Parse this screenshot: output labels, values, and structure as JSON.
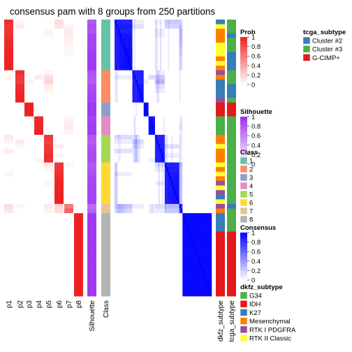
{
  "chart_data": {
    "type": "heatmap",
    "title": "consensus pam with 8 groups from 250 partitions",
    "n_samples": 60,
    "columns": [
      "p1",
      "p2",
      "p3",
      "p4",
      "p5",
      "p6",
      "p7",
      "p8",
      "Silhouette",
      "Class",
      "dkfz_subtype",
      "tcga_subtype"
    ],
    "class_sizes": [
      11,
      7,
      3,
      4,
      6,
      9,
      2,
      18
    ],
    "legends": {
      "prob": {
        "title": "Prob",
        "ticks": [
          "1",
          "0.8",
          "0.6",
          "0.4",
          "0.2",
          "0"
        ],
        "low_color": "#ffffff",
        "high_color": "#ee2222"
      },
      "silhouette": {
        "title": "Silhouette",
        "ticks": [
          "1",
          "0.8",
          "0.6",
          "0.4",
          "0.2",
          "0"
        ],
        "low_color": "#ffffff",
        "high_color": "#9b2ff0"
      },
      "class": {
        "title": "Class",
        "items": [
          {
            "label": "1",
            "color": "#66c2a5"
          },
          {
            "label": "2",
            "color": "#fc8d62"
          },
          {
            "label": "3",
            "color": "#8da0cb"
          },
          {
            "label": "4",
            "color": "#e78ac3"
          },
          {
            "label": "5",
            "color": "#a6d854"
          },
          {
            "label": "6",
            "color": "#ffd92f"
          },
          {
            "label": "7",
            "color": "#e5c494"
          },
          {
            "label": "8",
            "color": "#b3b3b3"
          }
        ]
      },
      "consensus": {
        "title": "Consensus",
        "ticks": [
          "1",
          "0.8",
          "0.6",
          "0.4",
          "0.2",
          "0"
        ],
        "low_color": "#ffffff",
        "high_color": "#0000ff"
      },
      "dkfz_subtype": {
        "title": "dkfz_subtype",
        "items": [
          {
            "label": "G34",
            "color": "#4daf4a"
          },
          {
            "label": "IDH",
            "color": "#e41a1c"
          },
          {
            "label": "K27",
            "color": "#377eb8"
          },
          {
            "label": "Mesenchymal",
            "color": "#ff7f00"
          },
          {
            "label": "RTK I PDGFRA",
            "color": "#984ea3"
          },
          {
            "label": "RTK II Classic",
            "color": "#ffff33"
          }
        ]
      },
      "tcga_subtype": {
        "title": "tcga_subtype",
        "items": [
          {
            "label": "Cluster #2",
            "color": "#377eb8"
          },
          {
            "label": "Cluster #3",
            "color": "#4daf4a"
          },
          {
            "label": "G-CIMP+",
            "color": "#e41a1c"
          }
        ]
      }
    },
    "samples": [
      {
        "cls": 1,
        "sil": 0.8,
        "p": [
          0.95,
          0.05,
          0,
          0,
          0.02,
          0.15,
          0,
          0
        ],
        "dkfz": "K27",
        "tcga": "Cluster #3"
      },
      {
        "cls": 1,
        "sil": 0.85,
        "p": [
          0.9,
          0.08,
          0,
          0,
          0,
          0.12,
          0.05,
          0
        ],
        "dkfz": "RTK II Classic",
        "tcga": "Cluster #3"
      },
      {
        "cls": 1,
        "sil": 0.82,
        "p": [
          0.92,
          0,
          0,
          0,
          0.05,
          0,
          0.1,
          0
        ],
        "dkfz": "Mesenchymal",
        "tcga": "Cluster #3"
      },
      {
        "cls": 1,
        "sil": 0.88,
        "p": [
          0.93,
          0,
          0,
          0,
          0.04,
          0,
          0.08,
          0
        ],
        "dkfz": "Mesenchymal",
        "tcga": "Cluster #2"
      },
      {
        "cls": 1,
        "sil": 0.9,
        "p": [
          0.96,
          0,
          0,
          0,
          0,
          0,
          0.07,
          0
        ],
        "dkfz": "Mesenchymal",
        "tcga": "Cluster #3"
      },
      {
        "cls": 1,
        "sil": 0.9,
        "p": [
          0.97,
          0,
          0,
          0,
          0,
          0,
          0.06,
          0
        ],
        "dkfz": "RTK II Classic",
        "tcga": "Cluster #3"
      },
      {
        "cls": 1,
        "sil": 0.92,
        "p": [
          0.98,
          0,
          0,
          0,
          0,
          0,
          0.04,
          0
        ],
        "dkfz": "RTK II Classic",
        "tcga": "Cluster #3"
      },
      {
        "cls": 1,
        "sil": 0.93,
        "p": [
          0.99,
          0,
          0,
          0,
          0,
          0,
          0.03,
          0
        ],
        "dkfz": "RTK II Classic",
        "tcga": "Cluster #2"
      },
      {
        "cls": 1,
        "sil": 0.94,
        "p": [
          1,
          0,
          0,
          0,
          0,
          0,
          0,
          0
        ],
        "dkfz": "Mesenchymal",
        "tcga": "Cluster #2"
      },
      {
        "cls": 1,
        "sil": 0.95,
        "p": [
          1,
          0,
          0,
          0,
          0,
          0,
          0,
          0
        ],
        "dkfz": "RTK II Classic",
        "tcga": "Cluster #2"
      },
      {
        "cls": 1,
        "sil": 0.95,
        "p": [
          1,
          0,
          0,
          0,
          0,
          0,
          0,
          0
        ],
        "dkfz": "Mesenchymal",
        "tcga": "Cluster #2"
      },
      {
        "cls": 2,
        "sil": 0.82,
        "p": [
          0,
          0.95,
          0,
          0,
          0.05,
          0,
          0,
          0
        ],
        "dkfz": "RTK I PDGFRA",
        "tcga": "Cluster #3"
      },
      {
        "cls": 2,
        "sil": 0.8,
        "p": [
          0.05,
          0.9,
          0,
          0.1,
          0.15,
          0,
          0,
          0
        ],
        "dkfz": "Mesenchymal",
        "tcga": "Cluster #3"
      },
      {
        "cls": 2,
        "sil": 0.78,
        "p": [
          0,
          0.88,
          0.05,
          0,
          0.2,
          0,
          0,
          0
        ],
        "dkfz": "K27",
        "tcga": "Cluster #3"
      },
      {
        "cls": 2,
        "sil": 0.86,
        "p": [
          0,
          0.95,
          0,
          0,
          0.08,
          0,
          0,
          0
        ],
        "dkfz": "K27",
        "tcga": "Cluster #2"
      },
      {
        "cls": 2,
        "sil": 0.88,
        "p": [
          0,
          0.97,
          0,
          0,
          0.05,
          0,
          0,
          0
        ],
        "dkfz": "K27",
        "tcga": "Cluster #2"
      },
      {
        "cls": 2,
        "sil": 0.9,
        "p": [
          0,
          1,
          0,
          0,
          0,
          0,
          0,
          0
        ],
        "dkfz": "K27",
        "tcga": "Cluster #2"
      },
      {
        "cls": 2,
        "sil": 0.9,
        "p": [
          0,
          1,
          0,
          0,
          0,
          0,
          0,
          0
        ],
        "dkfz": "RTK I PDGFRA",
        "tcga": "Cluster #3"
      },
      {
        "cls": 3,
        "sil": 0.95,
        "p": [
          0,
          0,
          1,
          0,
          0,
          0,
          0,
          0
        ],
        "dkfz": "IDH",
        "tcga": "G-CIMP+"
      },
      {
        "cls": 3,
        "sil": 0.95,
        "p": [
          0,
          0,
          1,
          0,
          0,
          0,
          0,
          0
        ],
        "dkfz": "IDH",
        "tcga": "G-CIMP+"
      },
      {
        "cls": 3,
        "sil": 0.95,
        "p": [
          0,
          0,
          1,
          0,
          0,
          0,
          0,
          0
        ],
        "dkfz": "IDH",
        "tcga": "G-CIMP+"
      },
      {
        "cls": 4,
        "sil": 0.9,
        "p": [
          0,
          0,
          0,
          0.95,
          0,
          0,
          0.05,
          0
        ],
        "dkfz": "G34",
        "tcga": "Cluster #3"
      },
      {
        "cls": 4,
        "sil": 0.92,
        "p": [
          0,
          0,
          0,
          0.97,
          0,
          0,
          0.08,
          0
        ],
        "dkfz": "G34",
        "tcga": "Cluster #3"
      },
      {
        "cls": 4,
        "sil": 0.93,
        "p": [
          0,
          0,
          0,
          0.98,
          0,
          0,
          0.1,
          0
        ],
        "dkfz": "G34",
        "tcga": "Cluster #3"
      },
      {
        "cls": 4,
        "sil": 0.93,
        "p": [
          0,
          0,
          0,
          1,
          0,
          0,
          0.05,
          0
        ],
        "dkfz": "G34",
        "tcga": "Cluster #3"
      },
      {
        "cls": 5,
        "sil": 0.8,
        "p": [
          0.1,
          0,
          0,
          0,
          0.9,
          0,
          0,
          0
        ],
        "dkfz": "Mesenchymal",
        "tcga": "Cluster #3"
      },
      {
        "cls": 5,
        "sil": 0.78,
        "p": [
          0.05,
          0.1,
          0,
          0,
          0.85,
          0,
          0,
          0
        ],
        "dkfz": "Mesenchymal",
        "tcga": "Cluster #3"
      },
      {
        "cls": 5,
        "sil": 0.82,
        "p": [
          0,
          0.05,
          0,
          0,
          0.9,
          0.08,
          0,
          0
        ],
        "dkfz": "RTK II Classic",
        "tcga": "Cluster #3"
      },
      {
        "cls": 5,
        "sil": 0.84,
        "p": [
          0.08,
          0,
          0,
          0,
          0.92,
          0,
          0,
          0
        ],
        "dkfz": "Mesenchymal",
        "tcga": "Cluster #3"
      },
      {
        "cls": 5,
        "sil": 0.86,
        "p": [
          0,
          0,
          0,
          0,
          0.95,
          0.05,
          0,
          0
        ],
        "dkfz": "Mesenchymal",
        "tcga": "Cluster #3"
      },
      {
        "cls": 5,
        "sil": 0.86,
        "p": [
          0,
          0,
          0,
          0.05,
          0.95,
          0,
          0,
          0
        ],
        "dkfz": "Mesenchymal",
        "tcga": "Cluster #3"
      },
      {
        "cls": 6,
        "sil": 0.8,
        "p": [
          0,
          0,
          0,
          0,
          0.1,
          0.9,
          0.05,
          0
        ],
        "dkfz": "RTK II Classic",
        "tcga": "Cluster #3"
      },
      {
        "cls": 6,
        "sil": 0.82,
        "p": [
          0,
          0,
          0,
          0,
          0.05,
          0.92,
          0,
          0
        ],
        "dkfz": "Mesenchymal",
        "tcga": "Cluster #3"
      },
      {
        "cls": 6,
        "sil": 0.85,
        "p": [
          0.05,
          0,
          0,
          0,
          0,
          0.95,
          0,
          0
        ],
        "dkfz": "RTK II Classic",
        "tcga": "Cluster #3"
      },
      {
        "cls": 6,
        "sil": 0.87,
        "p": [
          0,
          0,
          0,
          0,
          0,
          0.97,
          0,
          0
        ],
        "dkfz": "Mesenchymal",
        "tcga": "Cluster #3"
      },
      {
        "cls": 6,
        "sil": 0.88,
        "p": [
          0,
          0,
          0,
          0,
          0.05,
          0.98,
          0,
          0
        ],
        "dkfz": "RTK I PDGFRA",
        "tcga": "Cluster #3"
      },
      {
        "cls": 6,
        "sil": 0.9,
        "p": [
          0,
          0,
          0,
          0,
          0,
          1,
          0,
          0
        ],
        "dkfz": "RTK II Classic",
        "tcga": "Cluster #3"
      },
      {
        "cls": 6,
        "sil": 0.9,
        "p": [
          0,
          0,
          0,
          0,
          0,
          1,
          0,
          0
        ],
        "dkfz": "RTK I PDGFRA",
        "tcga": "Cluster #3"
      },
      {
        "cls": 6,
        "sil": 0.9,
        "p": [
          0,
          0,
          0,
          0,
          0,
          1,
          0,
          0
        ],
        "dkfz": "K27",
        "tcga": "Cluster #3"
      },
      {
        "cls": 6,
        "sil": 0.9,
        "p": [
          0,
          0,
          0,
          0,
          0,
          1,
          0,
          0
        ],
        "dkfz": "RTK II Classic",
        "tcga": "Cluster #3"
      },
      {
        "cls": 7,
        "sil": 0.7,
        "p": [
          0.15,
          0.05,
          0,
          0,
          0.1,
          0.2,
          0.6,
          0
        ],
        "dkfz": "RTK I PDGFRA",
        "tcga": "Cluster #2"
      },
      {
        "cls": 7,
        "sil": 0.75,
        "p": [
          0.1,
          0,
          0,
          0,
          0.05,
          0.15,
          0.7,
          0
        ],
        "dkfz": "Mesenchymal",
        "tcga": "Cluster #3"
      },
      {
        "cls": 8,
        "sil": 0.95,
        "p": [
          0,
          0,
          0,
          0,
          0,
          0,
          0,
          1
        ],
        "dkfz": "K27",
        "tcga": "Cluster #3"
      },
      {
        "cls": 8,
        "sil": 0.95,
        "p": [
          0,
          0,
          0,
          0,
          0,
          0,
          0,
          1
        ],
        "dkfz": "K27",
        "tcga": "Cluster #3"
      },
      {
        "cls": 8,
        "sil": 0.95,
        "p": [
          0,
          0,
          0,
          0,
          0,
          0,
          0,
          1
        ],
        "dkfz": "K27",
        "tcga": "Cluster #3"
      },
      {
        "cls": 8,
        "sil": 0.95,
        "p": [
          0,
          0,
          0,
          0,
          0,
          0,
          0,
          1
        ],
        "dkfz": "K27",
        "tcga": "Cluster #3"
      },
      {
        "cls": 8,
        "sil": 0.95,
        "p": [
          0,
          0,
          0,
          0,
          0,
          0,
          0,
          1
        ],
        "dkfz": "IDH",
        "tcga": "G-CIMP+"
      },
      {
        "cls": 8,
        "sil": 0.95,
        "p": [
          0,
          0,
          0,
          0,
          0,
          0,
          0,
          1
        ],
        "dkfz": "IDH",
        "tcga": "G-CIMP+"
      },
      {
        "cls": 8,
        "sil": 0.95,
        "p": [
          0,
          0,
          0,
          0,
          0,
          0,
          0,
          1
        ],
        "dkfz": "IDH",
        "tcga": "G-CIMP+"
      },
      {
        "cls": 8,
        "sil": 0.95,
        "p": [
          0,
          0,
          0,
          0,
          0,
          0,
          0,
          1
        ],
        "dkfz": "IDH",
        "tcga": "G-CIMP+"
      },
      {
        "cls": 8,
        "sil": 0.95,
        "p": [
          0,
          0,
          0,
          0,
          0,
          0,
          0,
          1
        ],
        "dkfz": "IDH",
        "tcga": "G-CIMP+"
      },
      {
        "cls": 8,
        "sil": 0.95,
        "p": [
          0,
          0,
          0,
          0,
          0,
          0,
          0,
          1
        ],
        "dkfz": "IDH",
        "tcga": "G-CIMP+"
      },
      {
        "cls": 8,
        "sil": 0.95,
        "p": [
          0,
          0,
          0,
          0,
          0,
          0,
          0,
          1
        ],
        "dkfz": "IDH",
        "tcga": "G-CIMP+"
      },
      {
        "cls": 8,
        "sil": 0.95,
        "p": [
          0,
          0,
          0,
          0,
          0,
          0,
          0,
          1
        ],
        "dkfz": "IDH",
        "tcga": "G-CIMP+"
      },
      {
        "cls": 8,
        "sil": 0.95,
        "p": [
          0,
          0,
          0,
          0,
          0,
          0,
          0,
          1
        ],
        "dkfz": "IDH",
        "tcga": "G-CIMP+"
      },
      {
        "cls": 8,
        "sil": 0.95,
        "p": [
          0,
          0,
          0,
          0,
          0,
          0,
          0,
          1
        ],
        "dkfz": "IDH",
        "tcga": "G-CIMP+"
      },
      {
        "cls": 8,
        "sil": 0.95,
        "p": [
          0,
          0,
          0,
          0,
          0,
          0,
          0,
          1
        ],
        "dkfz": "IDH",
        "tcga": "G-CIMP+"
      },
      {
        "cls": 8,
        "sil": 0.95,
        "p": [
          0,
          0,
          0,
          0,
          0,
          0,
          0,
          1
        ],
        "dkfz": "IDH",
        "tcga": "G-CIMP+"
      },
      {
        "cls": 8,
        "sil": 0.95,
        "p": [
          0,
          0,
          0,
          0,
          0,
          0,
          0,
          1
        ],
        "dkfz": "IDH",
        "tcga": "G-CIMP+"
      },
      {
        "cls": 8,
        "sil": 0.95,
        "p": [
          0,
          0,
          0,
          0,
          0,
          0,
          0,
          1
        ],
        "dkfz": "IDH",
        "tcga": "G-CIMP+"
      }
    ]
  }
}
